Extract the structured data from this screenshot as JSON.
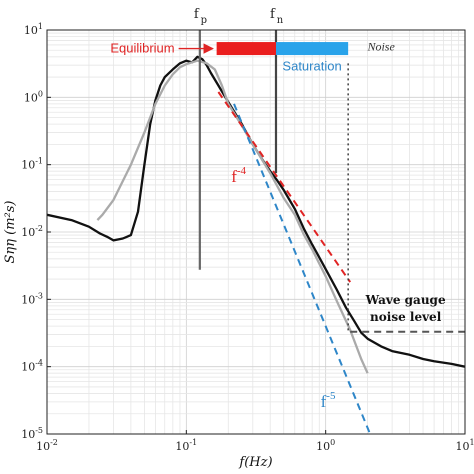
{
  "chart_data": {
    "type": "line",
    "xscale": "log",
    "yscale": "log",
    "xlim": [
      0.01,
      10
    ],
    "ylim": [
      1e-05,
      10
    ],
    "grid": true,
    "xlabel": "f(Hz)",
    "ylabel": "Sηη (m²s)",
    "x_ticks": [
      {
        "value": 0.01,
        "base": "10",
        "exp": "-2"
      },
      {
        "value": 0.1,
        "base": "10",
        "exp": "-1"
      },
      {
        "value": 1,
        "base": "10",
        "exp": "0"
      },
      {
        "value": 10,
        "base": "10",
        "exp": "1"
      }
    ],
    "y_ticks": [
      {
        "value": 1e-05,
        "base": "10",
        "exp": "-5"
      },
      {
        "value": 0.0001,
        "base": "10",
        "exp": "-4"
      },
      {
        "value": 0.001,
        "base": "10",
        "exp": "-3"
      },
      {
        "value": 0.01,
        "base": "10",
        "exp": "-2"
      },
      {
        "value": 0.1,
        "base": "10",
        "exp": "-1"
      },
      {
        "value": 1,
        "base": "10",
        "exp": "0"
      },
      {
        "value": 10,
        "base": "10",
        "exp": "1"
      }
    ],
    "series": [
      {
        "color": "#111111",
        "points": [
          [
            0.01,
            0.018
          ],
          [
            0.015,
            0.015
          ],
          [
            0.02,
            0.012
          ],
          [
            0.024,
            0.0095
          ],
          [
            0.027,
            0.0085
          ],
          [
            0.03,
            0.0075
          ],
          [
            0.035,
            0.008
          ],
          [
            0.04,
            0.009
          ],
          [
            0.045,
            0.02
          ],
          [
            0.05,
            0.1
          ],
          [
            0.055,
            0.4
          ],
          [
            0.06,
            0.9
          ],
          [
            0.065,
            1.5
          ],
          [
            0.07,
            2.0
          ],
          [
            0.08,
            2.6
          ],
          [
            0.09,
            3.2
          ],
          [
            0.1,
            3.5
          ],
          [
            0.11,
            3.3
          ],
          [
            0.12,
            4.0
          ],
          [
            0.13,
            3.7
          ],
          [
            0.14,
            3.0
          ],
          [
            0.15,
            2.3
          ],
          [
            0.17,
            1.5
          ],
          [
            0.2,
            0.85
          ],
          [
            0.25,
            0.4
          ],
          [
            0.3,
            0.2
          ],
          [
            0.35,
            0.12
          ],
          [
            0.4,
            0.08
          ],
          [
            0.45,
            0.058
          ],
          [
            0.5,
            0.042
          ],
          [
            0.6,
            0.022
          ],
          [
            0.7,
            0.011
          ],
          [
            0.8,
            0.0065
          ],
          [
            0.9,
            0.0042
          ],
          [
            1.0,
            0.0028
          ],
          [
            1.2,
            0.0014
          ],
          [
            1.4,
            0.00075
          ],
          [
            1.6,
            0.00048
          ],
          [
            1.8,
            0.00032
          ],
          [
            2.0,
            0.00026
          ],
          [
            2.5,
            0.0002
          ],
          [
            3.0,
            0.00017
          ],
          [
            4.0,
            0.00015
          ],
          [
            5.0,
            0.00013
          ],
          [
            6.0,
            0.00012
          ],
          [
            8.0,
            0.00011
          ],
          [
            10.0,
            0.0001
          ]
        ]
      },
      {
        "color": "#aaaaaa",
        "points": [
          [
            0.023,
            0.015
          ],
          [
            0.025,
            0.018
          ],
          [
            0.03,
            0.03
          ],
          [
            0.04,
            0.1
          ],
          [
            0.05,
            0.3
          ],
          [
            0.06,
            0.8
          ],
          [
            0.07,
            1.5
          ],
          [
            0.08,
            2.2
          ],
          [
            0.09,
            2.8
          ],
          [
            0.1,
            3.1
          ],
          [
            0.12,
            3.5
          ],
          [
            0.14,
            3.2
          ],
          [
            0.16,
            2.6
          ],
          [
            0.18,
            1.5
          ],
          [
            0.2,
            0.8
          ],
          [
            0.25,
            0.38
          ],
          [
            0.3,
            0.2
          ],
          [
            0.4,
            0.075
          ],
          [
            0.5,
            0.032
          ],
          [
            0.6,
            0.018
          ],
          [
            0.7,
            0.009
          ],
          [
            0.8,
            0.0055
          ],
          [
            1.0,
            0.0022
          ],
          [
            1.2,
            0.00095
          ],
          [
            1.5,
            0.00035
          ],
          [
            1.8,
            0.00013
          ],
          [
            2.0,
            8e-05
          ]
        ]
      },
      {
        "name": "f⁻⁴",
        "color": "#e02424",
        "dashed": true,
        "points": [
          [
            0.17,
            1.2
          ],
          [
            1.5,
            0.0018
          ]
        ]
      },
      {
        "name": "f⁻⁵",
        "color": "#2e86c8",
        "dashed": true,
        "points": [
          [
            0.22,
            0.8
          ],
          [
            2.3,
            6.1e-06
          ]
        ]
      },
      {
        "color": "#555555",
        "dashed": true,
        "points": [
          [
            1.5,
            0.00033
          ],
          [
            10,
            0.00033
          ]
        ]
      }
    ],
    "vlines": [
      {
        "label": "f",
        "sub": "p",
        "x": 0.125,
        "ymin": 0.00275,
        "ymax": 10,
        "color": "#666666",
        "dotted": false
      },
      {
        "label": "f",
        "sub": "n",
        "x": 0.44,
        "ymin": 0.075,
        "ymax": 10,
        "color": "#444444",
        "dotted": false
      },
      {
        "label": "",
        "sub": "",
        "x": 1.45,
        "ymin": 0.00033,
        "ymax": 3.2,
        "color": "#333333",
        "dotted": true
      }
    ],
    "bands": [
      {
        "label": "Equilibrium",
        "x0": 0.165,
        "x1": 0.44,
        "y": 5.3,
        "color": "#ea1e1e",
        "text_color": "#e02424"
      },
      {
        "label": "Saturation",
        "x0": 0.44,
        "x1": 1.45,
        "y": 5.3,
        "color": "#29a3ea",
        "text_color": "#2e86c8"
      }
    ],
    "annotations": [
      {
        "text": "Noise",
        "x": 2.5,
        "y": 5.0,
        "color": "#333333",
        "italic": true
      },
      {
        "text": "Wave gauge",
        "x": 3.75,
        "y": 0.00085,
        "color": "#111111",
        "bold": true
      },
      {
        "text": "noise level",
        "x": 3.75,
        "y": 0.00048,
        "color": "#111111",
        "bold": true
      },
      {
        "text": "f",
        "sup": "-4",
        "x": 0.21,
        "y": 0.055,
        "color": "#e02424"
      },
      {
        "text": "f",
        "sup": "-5",
        "x": 0.92,
        "y": 2.5e-05,
        "color": "#2e86c8"
      }
    ]
  }
}
